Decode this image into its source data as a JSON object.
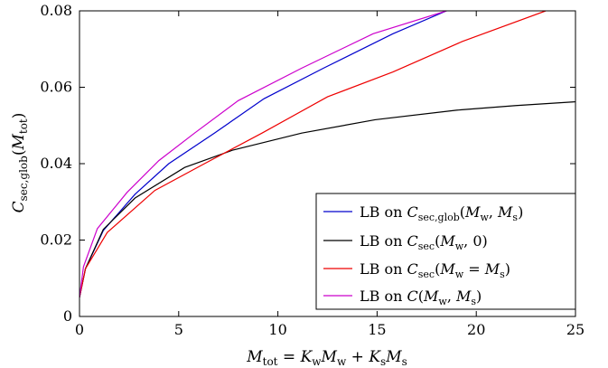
{
  "chart_data": {
    "type": "line",
    "title": "",
    "xlabel": "M_tot = K_w M_w + K_s M_s",
    "ylabel": "C_sec,glob(M_tot)",
    "xlim": [
      0,
      25
    ],
    "ylim": [
      0,
      0.08
    ],
    "x_ticks": [
      0,
      5,
      10,
      15,
      20,
      25
    ],
    "y_ticks": [
      0,
      0.02,
      0.04,
      0.06,
      0.08
    ],
    "x_tick_labels": [
      "0",
      "5",
      "10",
      "15",
      "20",
      "25"
    ],
    "y_tick_labels": [
      "0",
      "0.02",
      "0.04",
      "0.06",
      "0.08"
    ],
    "grid": false,
    "legend_position": "bottom-right",
    "series": [
      {
        "name": "LB on C_sec,glob(M_w, M_s)",
        "color": "#0000cc",
        "x": [
          0,
          0.3,
          1.2,
          2.8,
          4.5,
          6.8,
          9.3,
          12.3,
          15.8,
          18.5
        ],
        "y": [
          0.005,
          0.0125,
          0.0225,
          0.032,
          0.04,
          0.048,
          0.057,
          0.065,
          0.074,
          0.08
        ]
      },
      {
        "name": "LB on C_sec(M_w, 0)",
        "color": "#000000",
        "x": [
          0,
          0.3,
          1.2,
          2.8,
          5.3,
          7.7,
          11.2,
          14.9,
          19.0,
          22.0,
          25.0
        ],
        "y": [
          0.005,
          0.0125,
          0.0228,
          0.031,
          0.039,
          0.0435,
          0.048,
          0.0515,
          0.054,
          0.0552,
          0.0562
        ]
      },
      {
        "name": "LB on C_sec(M_w = M_s)",
        "color": "#ee0000",
        "x": [
          0,
          0.3,
          1.4,
          3.8,
          6.3,
          9.2,
          12.5,
          15.8,
          19.3,
          23.5
        ],
        "y": [
          0.005,
          0.0125,
          0.022,
          0.033,
          0.04,
          0.048,
          0.0575,
          0.064,
          0.072,
          0.08
        ]
      },
      {
        "name": "LB on C(M_w, M_s)",
        "color": "#cc00cc",
        "x": [
          0,
          0.2,
          0.9,
          2.4,
          4.0,
          5.8,
          8.0,
          11.2,
          14.8,
          18.5
        ],
        "y": [
          0.005,
          0.013,
          0.023,
          0.0325,
          0.0408,
          0.048,
          0.0565,
          0.065,
          0.074,
          0.08
        ]
      }
    ]
  }
}
